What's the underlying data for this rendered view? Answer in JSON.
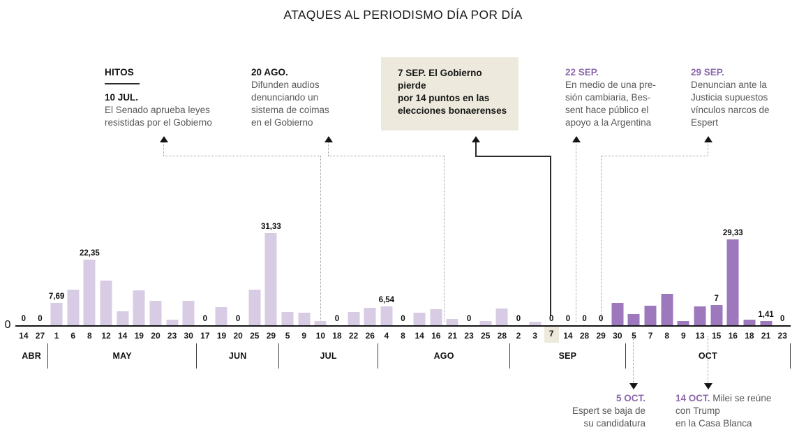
{
  "title": "ATAQUES AL PERIODISMO DÍA POR DÍA",
  "colors": {
    "bar_light": "#d8cbe4",
    "bar_dark": "#9d78bd",
    "accent_purple": "#8c68ac",
    "highlight_beige": "#edeadd",
    "text_gray": "#585858",
    "axis_black": "#141414"
  },
  "milestones": {
    "header": "HITOS",
    "top": [
      {
        "date": "10 JUL.",
        "lines": [
          "El Senado aprueba leyes",
          "resistidas por el Gobierno"
        ]
      },
      {
        "date": "20 AGO.",
        "lines": [
          "Difunden audios",
          "denunciando un",
          "sistema de coimas",
          "en el Gobierno"
        ]
      },
      {
        "date": "7 SEP.",
        "lines": [
          "El Gobierno pierde",
          "por 14 puntos en las",
          "elecciones bonaerenses"
        ]
      },
      {
        "date": "22 SEP.",
        "lines": [
          "En medio de una pre-",
          "sión cambiaria, Bes-",
          "sent hace público el",
          "apoyo a la Argentina"
        ]
      },
      {
        "date": "29 SEP.",
        "lines": [
          "Denuncian ante la",
          "Justicia supuestos",
          "vínculos narcos de",
          "Espert"
        ]
      }
    ],
    "bottom": [
      {
        "date": "5 OCT.",
        "lines": [
          "Espert se baja de",
          "su candidatura"
        ]
      },
      {
        "date": "14 OCT.",
        "text": "Milei se reúne",
        "lines": [
          "con Trump",
          "en la Casa Blanca"
        ]
      }
    ]
  },
  "chart_data": {
    "type": "bar",
    "title": "ATAQUES AL PERIODISMO DÍA POR DÍA",
    "xlabel": "",
    "ylabel": "",
    "y_axis_zero": "0",
    "ylim": [
      0,
      32
    ],
    "grid": false,
    "months": [
      {
        "label": "ABR",
        "ticks": [
          {
            "d": "14",
            "v": 0,
            "label": "0"
          },
          {
            "d": "27",
            "v": 0,
            "label": "0"
          }
        ]
      },
      {
        "label": "MAY",
        "ticks": [
          {
            "d": "1",
            "v": 7.69,
            "label": "7,69"
          },
          {
            "d": "6",
            "v": 12.2
          },
          {
            "d": "8",
            "v": 22.35,
            "label": "22,35"
          },
          {
            "d": "12",
            "v": 15.2
          },
          {
            "d": "14",
            "v": 4.8
          },
          {
            "d": "19",
            "v": 11.8
          },
          {
            "d": "20",
            "v": 8.3
          },
          {
            "d": "23",
            "v": 1.9
          },
          {
            "d": "30",
            "v": 8.3
          }
        ]
      },
      {
        "label": "JUN",
        "ticks": [
          {
            "d": "17",
            "v": 0,
            "label": "0"
          },
          {
            "d": "19",
            "v": 6.2
          },
          {
            "d": "20",
            "v": 0,
            "label": "0"
          },
          {
            "d": "25",
            "v": 12.2
          },
          {
            "d": "29",
            "v": 31.33,
            "label": "31,33"
          }
        ]
      },
      {
        "label": "JUL",
        "ticks": [
          {
            "d": "5",
            "v": 4.6
          },
          {
            "d": "9",
            "v": 4.4
          },
          {
            "d": "10",
            "v": 1.4
          },
          {
            "d": "18",
            "v": 0,
            "label": "0"
          },
          {
            "d": "22",
            "v": 4.6
          },
          {
            "d": "26",
            "v": 5.9
          }
        ]
      },
      {
        "label": "AGO",
        "ticks": [
          {
            "d": "4",
            "v": 6.54,
            "label": "6,54"
          },
          {
            "d": "8",
            "v": 0,
            "label": "0"
          },
          {
            "d": "14",
            "v": 4.4
          },
          {
            "d": "16",
            "v": 5.4
          },
          {
            "d": "21",
            "v": 2.1
          },
          {
            "d": "23",
            "v": 0,
            "label": "0"
          },
          {
            "d": "25",
            "v": 1.4
          },
          {
            "d": "28",
            "v": 5.7
          }
        ]
      },
      {
        "label": "SEP",
        "ticks": [
          {
            "d": "2",
            "v": 0,
            "label": "0"
          },
          {
            "d": "3",
            "v": 1.3
          },
          {
            "d": "7",
            "v": 0,
            "label": "0",
            "highlight": true
          },
          {
            "d": "14",
            "v": 0,
            "label": "0"
          },
          {
            "d": "28",
            "v": 0,
            "label": "0"
          },
          {
            "d": "29",
            "v": 0,
            "label": "0"
          },
          {
            "d": "30",
            "v": 7.7,
            "dark": true
          }
        ]
      },
      {
        "label": "OCT",
        "ticks": [
          {
            "d": "5",
            "v": 3.9,
            "dark": true
          },
          {
            "d": "7",
            "v": 6.7,
            "dark": true
          },
          {
            "d": "8",
            "v": 10.6,
            "dark": true
          },
          {
            "d": "9",
            "v": 1.4,
            "dark": true
          },
          {
            "d": "13",
            "v": 6.5,
            "dark": true
          },
          {
            "d": "15",
            "v": 7,
            "label": "7",
            "dark": true
          },
          {
            "d": "16",
            "v": 29.33,
            "label": "29,33",
            "dark": true
          },
          {
            "d": "18",
            "v": 1.8,
            "dark": true
          },
          {
            "d": "21",
            "v": 1.41,
            "label": "1,41",
            "dark": true
          },
          {
            "d": "23",
            "v": 0,
            "label": "0"
          }
        ]
      }
    ]
  }
}
